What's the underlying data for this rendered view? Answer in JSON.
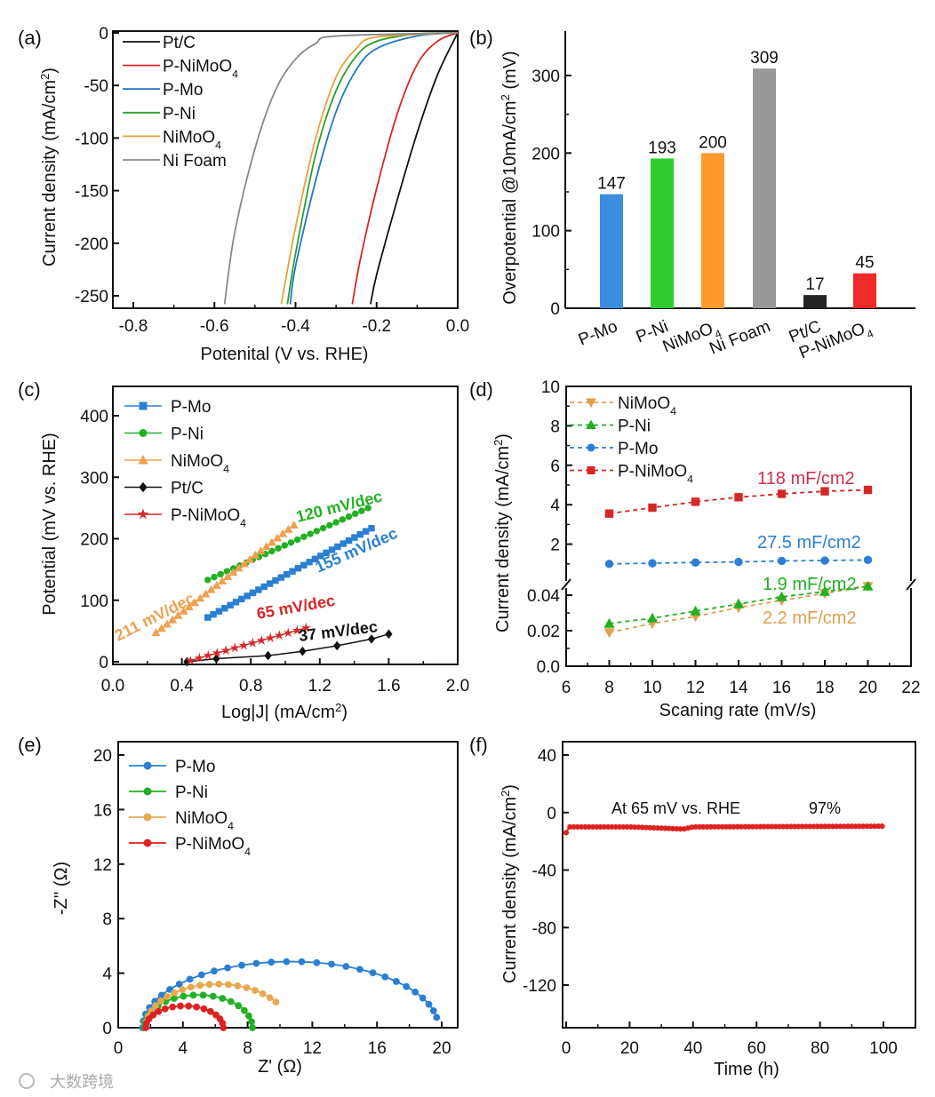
{
  "watermark": "大数跨境",
  "chart_data": [
    {
      "panel": "(a)",
      "type": "line",
      "xlabel": "Potenital (V vs. RHE)",
      "ylabel": "Current density (mA/cm2)",
      "xlim": [
        -0.85,
        0.0
      ],
      "ylim": [
        -262,
        0
      ],
      "xticks": [
        -0.8,
        -0.6,
        -0.4,
        -0.2,
        0.0
      ],
      "xtick_labels": [
        "-0.8",
        "-0.6",
        "-0.4",
        "-0.2",
        "0.0"
      ],
      "yticks": [
        0,
        -50,
        -100,
        -150,
        -200,
        -250
      ],
      "ytick_labels": [
        "0",
        "-50",
        "-100",
        "-150",
        "-200",
        "-250"
      ],
      "legend": "top-left",
      "series": [
        {
          "name": "Pt/C",
          "color": "#111111",
          "points": [
            [
              0,
              0
            ],
            [
              -0.05,
              -40
            ],
            [
              -0.1,
              -95
            ],
            [
              -0.15,
              -160
            ],
            [
              -0.2,
              -230
            ],
            [
              -0.215,
              -258
            ]
          ]
        },
        {
          "name": "P-NiMoO4",
          "color": "#d62728",
          "points": [
            [
              0,
              0
            ],
            [
              -0.05,
              -8
            ],
            [
              -0.1,
              -30
            ],
            [
              -0.15,
              -78
            ],
            [
              -0.2,
              -148
            ],
            [
              -0.24,
              -215
            ],
            [
              -0.26,
              -258
            ]
          ]
        },
        {
          "name": "P-Mo",
          "color": "#1f77c4",
          "points": [
            [
              0,
              0
            ],
            [
              -0.1,
              -3
            ],
            [
              -0.2,
              -15
            ],
            [
              -0.25,
              -35
            ],
            [
              -0.3,
              -75
            ],
            [
              -0.35,
              -140
            ],
            [
              -0.4,
              -222
            ],
            [
              -0.413,
              -258
            ]
          ]
        },
        {
          "name": "P-Ni",
          "color": "#2ca02c",
          "points": [
            [
              0,
              0
            ],
            [
              -0.1,
              -1
            ],
            [
              -0.2,
              -8
            ],
            [
              -0.25,
              -22
            ],
            [
              -0.3,
              -55
            ],
            [
              -0.35,
              -115
            ],
            [
              -0.4,
              -210
            ],
            [
              -0.42,
              -258
            ]
          ]
        },
        {
          "name": "NiMoO4",
          "color": "#e8a040",
          "points": [
            [
              0,
              0
            ],
            [
              -0.2,
              -4
            ],
            [
              -0.25,
              -15
            ],
            [
              -0.3,
              -42
            ],
            [
              -0.35,
              -100
            ],
            [
              -0.4,
              -185
            ],
            [
              -0.435,
              -258
            ]
          ]
        },
        {
          "name": "Ni Foam",
          "color": "#888888",
          "points": [
            [
              0,
              0
            ],
            [
              -0.3,
              -3
            ],
            [
              -0.35,
              -10
            ],
            [
              -0.4,
              -25
            ],
            [
              -0.45,
              -55
            ],
            [
              -0.5,
              -110
            ],
            [
              -0.55,
              -190
            ],
            [
              -0.575,
              -258
            ]
          ]
        }
      ]
    },
    {
      "panel": "(b)",
      "type": "bar",
      "ylabel": "Overpotential @10mA/cm2 (mV)",
      "ylim": [
        0,
        360
      ],
      "yticks": [
        0,
        100,
        200,
        300
      ],
      "ytick_labels": [
        "0",
        "100",
        "200",
        "300"
      ],
      "categories": [
        "P-Mo",
        "P-Ni",
        "NiMoO4",
        "Ni Foam",
        "Pt/C",
        "P-NiMoO4"
      ],
      "values": [
        147,
        193,
        200,
        309,
        17,
        45
      ],
      "value_labels": [
        "147",
        "193",
        "200",
        "309",
        "17",
        "45"
      ],
      "colors": [
        "#3a8de0",
        "#2ecc2e",
        "#ff9a2e",
        "#999999",
        "#222222",
        "#ee2a2a"
      ]
    },
    {
      "panel": "(c)",
      "type": "line",
      "xlabel": "Log|J| (mA/cm2)",
      "ylabel": "Potential (mV vs. RHE)",
      "xlim": [
        0,
        2.0
      ],
      "ylim": [
        -5,
        447
      ],
      "xticks": [
        0,
        0.4,
        0.8,
        1.2,
        1.6,
        2.0
      ],
      "xtick_labels": [
        "0.0",
        "0.4",
        "0.8",
        "1.2",
        "1.6",
        "2.0"
      ],
      "yticks": [
        0,
        100,
        200,
        300,
        400
      ],
      "ytick_labels": [
        "0",
        "100",
        "200",
        "300",
        "400"
      ],
      "legend": "top-left",
      "series": [
        {
          "name": "P-Mo",
          "color": "#2a7fd4",
          "marker": "square",
          "points": [
            [
              0.55,
              72
            ],
            [
              1.5,
              217
            ]
          ],
          "n": 30
        },
        {
          "name": "P-Ni",
          "color": "#22b022",
          "marker": "circle",
          "points": [
            [
              0.55,
              133
            ],
            [
              1.48,
              250
            ]
          ],
          "n": 26
        },
        {
          "name": "NiMoO4",
          "color": "#f0a050",
          "marker": "triangle",
          "points": [
            [
              0.25,
              47
            ],
            [
              1.05,
              222
            ]
          ],
          "n": 26
        },
        {
          "name": "Pt/C",
          "color": "#111111",
          "marker": "diamond",
          "points": [
            [
              0.43,
              0
            ],
            [
              0.6,
              5
            ],
            [
              0.9,
              10
            ],
            [
              1.1,
              17
            ],
            [
              1.3,
              26
            ],
            [
              1.5,
              37
            ],
            [
              1.6,
              45
            ]
          ],
          "n": 0
        },
        {
          "name": "P-NiMoO4",
          "color": "#d62728",
          "marker": "star",
          "points": [
            [
              0.45,
              2
            ],
            [
              1.12,
              55
            ]
          ],
          "n": 14
        }
      ],
      "annotations": [
        {
          "text": "120 mV/dec",
          "color": "#22b022"
        },
        {
          "text": "155 mV/dec",
          "color": "#2a7fd4"
        },
        {
          "text": "211 mV/dec",
          "color": "#f0a050"
        },
        {
          "text": "65 mV/dec",
          "color": "#d62728"
        },
        {
          "text": "37 mV/dec",
          "color": "#111111"
        }
      ]
    },
    {
      "panel": "(d)",
      "type": "scatter",
      "xlabel": "Scaning rate (mV/s)",
      "ylabel": "Current density (mA/cm2)",
      "xlim": [
        6,
        22
      ],
      "ylim_lower": [
        0,
        0.046
      ],
      "ylim_upper": [
        0,
        10
      ],
      "axis_break": true,
      "xticks": [
        6,
        8,
        10,
        12,
        14,
        16,
        18,
        20,
        22
      ],
      "xtick_labels": [
        "6",
        "8",
        "10",
        "12",
        "14",
        "16",
        "18",
        "20",
        "22"
      ],
      "yticks_upper": [
        2,
        4,
        6,
        8,
        10
      ],
      "ytick_labels_upper": [
        "2",
        "4",
        "6",
        "8",
        "10"
      ],
      "yticks_lower": [
        0,
        0.02,
        0.04
      ],
      "ytick_labels_lower": [
        "0.0",
        "0.02",
        "0.04"
      ],
      "x": [
        8,
        10,
        12,
        14,
        16,
        18,
        20
      ],
      "legend": "top-left",
      "series": [
        {
          "name": "NiMoO4",
          "color": "#e0a050",
          "marker": "triangle-down",
          "segment": "lower",
          "values": [
            0.019,
            0.024,
            0.028,
            0.033,
            0.037,
            0.041,
            0.045
          ]
        },
        {
          "name": "P-Ni",
          "color": "#22b022",
          "marker": "triangle",
          "segment": "lower",
          "values": [
            0.024,
            0.027,
            0.031,
            0.035,
            0.039,
            0.042,
            0.045
          ]
        },
        {
          "name": "P-Mo",
          "color": "#2a7fd4",
          "marker": "circle",
          "segment": "upper",
          "values": [
            1.0,
            1.03,
            1.07,
            1.1,
            1.15,
            1.17,
            1.2
          ]
        },
        {
          "name": "P-NiMoO4",
          "color": "#d62728",
          "marker": "square",
          "segment": "upper",
          "values": [
            3.55,
            3.85,
            4.15,
            4.38,
            4.55,
            4.68,
            4.75
          ]
        }
      ],
      "annotations": [
        {
          "text": "118 mF/cm2",
          "color": "#d0304a"
        },
        {
          "text": "27.5 mF/cm2",
          "color": "#2a7fd4"
        },
        {
          "text": "1.9 mF/cm2",
          "color": "#22b022"
        },
        {
          "text": "2.2 mF/cm2",
          "color": "#e0a050"
        }
      ]
    },
    {
      "panel": "(e)",
      "type": "scatter",
      "xlabel": "Z' (Ω)",
      "ylabel": "-Z'' (Ω)",
      "xlim": [
        0,
        21
      ],
      "ylim": [
        0,
        21
      ],
      "xticks": [
        0,
        4,
        8,
        12,
        16,
        20
      ],
      "xtick_labels": [
        "0",
        "4",
        "8",
        "12",
        "16",
        "20"
      ],
      "yticks": [
        0,
        4,
        8,
        12,
        16,
        20
      ],
      "ytick_labels": [
        "0",
        "4",
        "8",
        "12",
        "16",
        "20"
      ],
      "legend": "top-left",
      "series": [
        {
          "name": "P-Mo",
          "color": "#2a7fd4",
          "z_start": 1.5,
          "z_end": 19.8,
          "peak": 4.85,
          "arc_fraction": 0.95,
          "n": 30
        },
        {
          "name": "P-Ni",
          "color": "#22b022",
          "z_start": 1.6,
          "z_end": 8.3,
          "peak": 2.4,
          "arc_fraction": 1.0,
          "n": 18
        },
        {
          "name": "NiMoO4",
          "color": "#e8a850",
          "z_start": 1.7,
          "z_end": 10.6,
          "peak": 3.2,
          "arc_fraction": 0.8,
          "n": 20
        },
        {
          "name": "P-NiMoO4",
          "color": "#dd2222",
          "z_start": 1.7,
          "z_end": 6.5,
          "peak": 1.6,
          "arc_fraction": 1.0,
          "n": 16
        }
      ]
    },
    {
      "panel": "(f)",
      "type": "line",
      "xlabel": "Time (h)",
      "ylabel": "Current density (mA/cm2)",
      "xlim": [
        0,
        110
      ],
      "ylim": [
        -150,
        49
      ],
      "xticks": [
        0,
        20,
        40,
        60,
        80,
        100
      ],
      "xtick_labels": [
        "0",
        "20",
        "40",
        "60",
        "80",
        "100"
      ],
      "yticks": [
        40,
        0,
        -40,
        -80,
        -120
      ],
      "ytick_labels": [
        "40",
        "0",
        "-40",
        "-80",
        "-120"
      ],
      "series": [
        {
          "name": "P-NiMoO4",
          "color": "#dd2222",
          "points": [
            [
              0,
              -14
            ],
            [
              1,
              -10
            ],
            [
              20,
              -10
            ],
            [
              37,
              -11.5
            ],
            [
              40,
              -10
            ],
            [
              100,
              -9.5
            ]
          ]
        }
      ],
      "annotations": [
        {
          "text": "At 65 mV vs. RHE",
          "color": "#111111"
        },
        {
          "text": "97%",
          "color": "#111111"
        }
      ]
    }
  ]
}
